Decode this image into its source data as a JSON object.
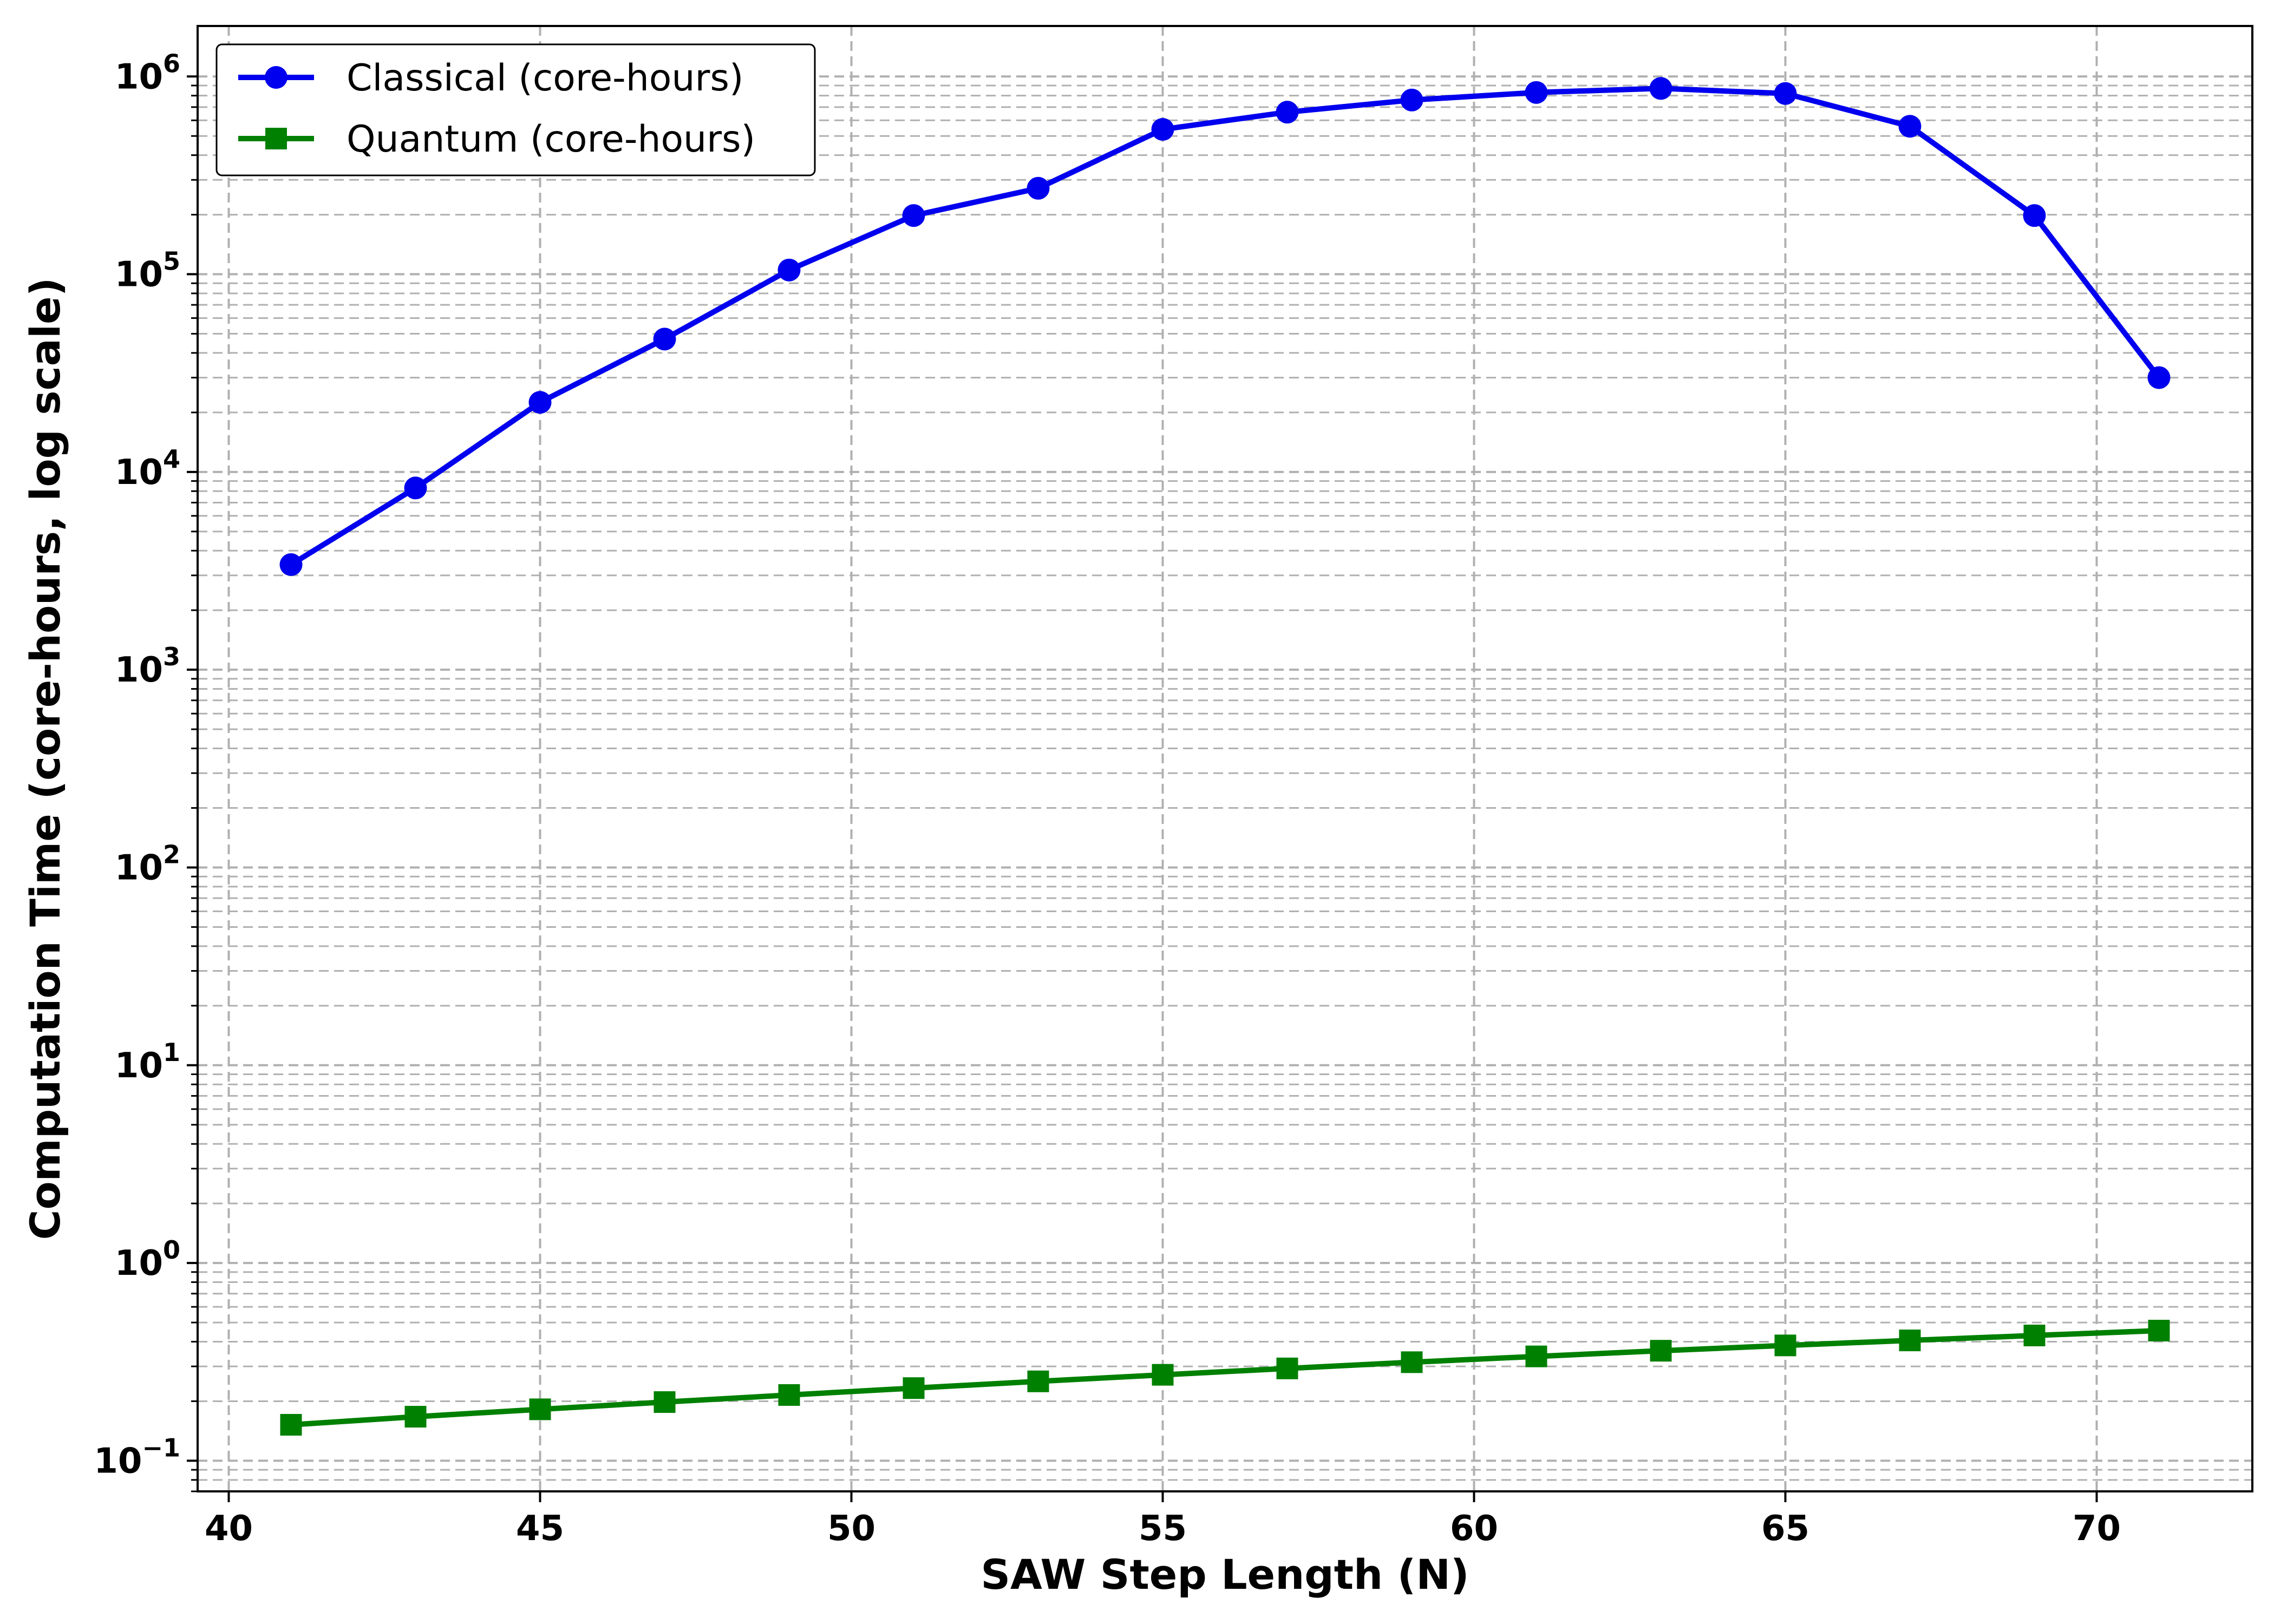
{
  "chart_data": {
    "type": "line",
    "title": "",
    "xlabel": "SAW Step Length (N)",
    "ylabel": "Computation Time (core-hours, log scale)",
    "x_ticks": [
      40,
      45,
      50,
      55,
      60,
      65,
      70
    ],
    "x_tick_labels": [
      "40",
      "45",
      "50",
      "55",
      "60",
      "65",
      "70"
    ],
    "y_ticks": [
      0.1,
      1,
      10,
      100,
      1000,
      10000,
      100000,
      1000000
    ],
    "y_tick_labels": [
      {
        "base": "10",
        "exp": "−1"
      },
      {
        "base": "10",
        "exp": "0"
      },
      {
        "base": "10",
        "exp": "1"
      },
      {
        "base": "10",
        "exp": "2"
      },
      {
        "base": "10",
        "exp": "3"
      },
      {
        "base": "10",
        "exp": "4"
      },
      {
        "base": "10",
        "exp": "5"
      },
      {
        "base": "10",
        "exp": "6"
      }
    ],
    "xlim": [
      39.5,
      72.5
    ],
    "ylim": [
      0.07,
      1800000
    ],
    "yscale": "log",
    "grid": true,
    "legend_position": "top-left",
    "x": [
      41,
      43,
      45,
      47,
      49,
      51,
      53,
      55,
      57,
      59,
      61,
      63,
      65,
      67,
      69,
      71
    ],
    "series": [
      {
        "name": "Classical (core-hours)",
        "color": "#0000ee",
        "marker": "circle",
        "values": [
          3400,
          8300,
          22500,
          47000,
          105000,
          198000,
          272000,
          540000,
          660000,
          760000,
          830000,
          870000,
          820000,
          560000,
          198000,
          30000
        ]
      },
      {
        "name": "Quantum (core-hours)",
        "color": "#008000",
        "marker": "square",
        "values": [
          0.152,
          0.167,
          0.182,
          0.198,
          0.215,
          0.233,
          0.252,
          0.272,
          0.293,
          0.315,
          0.337,
          0.36,
          0.383,
          0.406,
          0.43,
          0.455
        ]
      }
    ]
  }
}
